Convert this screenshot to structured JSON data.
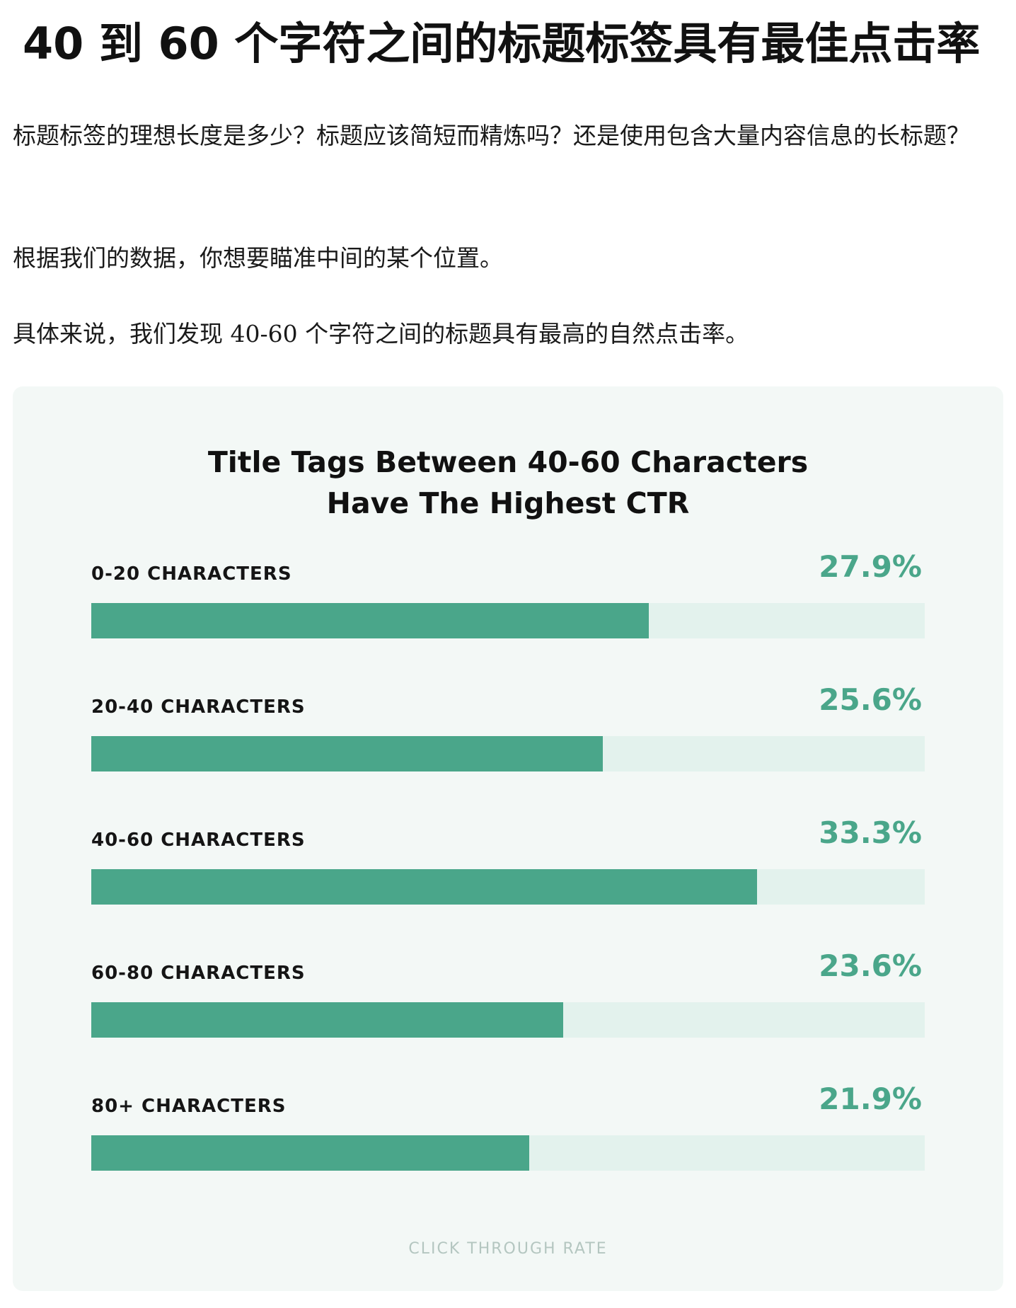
{
  "article": {
    "headline": "40 到 60 个字符之间的标题标签具有最佳点击率",
    "paragraphs": [
      "标题标签的理想长度是多少？标题应该简短而精炼吗？还是使用包含大量内容信息的长标题？",
      "根据我们的数据，你想要瞄准中间的某个位置。",
      "具体来说，我们发现 40-60 个字符之间的标题具有最高的自然点击率。"
    ]
  },
  "chart_data": {
    "type": "bar",
    "orientation": "horizontal",
    "title_lines": [
      "Title Tags Between 40-60 Characters",
      "Have The Highest CTR"
    ],
    "categories": [
      "0-20 CHARACTERS",
      "20-40 CHARACTERS",
      "40-60 CHARACTERS",
      "60-80 CHARACTERS",
      "80+ CHARACTERS"
    ],
    "values": [
      27.9,
      25.6,
      33.3,
      23.6,
      21.9
    ],
    "value_labels": [
      "27.9%",
      "25.6%",
      "33.3%",
      "23.6%",
      "21.9%"
    ],
    "xlabel": "CLICK THROUGH RATE",
    "ylabel": "",
    "xlim": [
      0,
      41.7
    ],
    "grid": false,
    "colors": {
      "bar": "#4aa68a",
      "track": "#e3f2ed",
      "value_text": "#4aa68a",
      "card_background": "#f3f8f6"
    }
  }
}
